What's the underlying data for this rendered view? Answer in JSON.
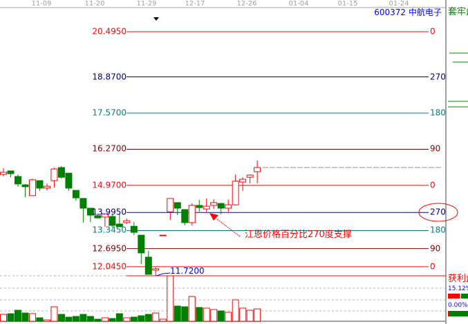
{
  "header": {
    "dates": [
      "11-09",
      "11-20",
      "11-29",
      "12-17",
      "12-26",
      "01-04",
      "01-15",
      "01-24"
    ],
    "stock_code": "600372",
    "stock_name": "中航电子",
    "side_title": "套牢盘"
  },
  "gann_levels": [
    {
      "price": "20.4950",
      "angle": "0",
      "color": "#ff0000"
    },
    {
      "price": "18.8700",
      "angle": "270",
      "color": "#000080"
    },
    {
      "price": "17.5700",
      "angle": "180",
      "color": "#008080"
    },
    {
      "price": "16.2700",
      "angle": "90",
      "color": "#800000"
    },
    {
      "price": "14.9700",
      "angle": "0",
      "color": "#ff0000"
    },
    {
      "price": "13.9950",
      "angle": "270",
      "color": "#000080"
    },
    {
      "price": "13.3450",
      "angle": "180",
      "color": "#008080"
    },
    {
      "price": "12.6950",
      "angle": "90",
      "color": "#800000"
    },
    {
      "price": "12.0450",
      "angle": "0",
      "color": "#ff0000"
    }
  ],
  "low_marker": "11.7200",
  "annotation": "江恩价格百分比270度支撑",
  "side_panel": {
    "profit_title": "获利盘",
    "profit_pct_1": "15.12%",
    "profit_pct_2": "0.00%",
    "profit_fraction_1": 0.1512,
    "profit_fraction_2": 0.0
  },
  "colors": {
    "up": "#ff0000",
    "down": "#008000",
    "grid": "#a0a0a0"
  },
  "chart_data": {
    "type": "candlestick",
    "price_range": [
      11.72,
      20.495
    ],
    "candles": [
      [
        15.36,
        15.59,
        15.29,
        15.44
      ],
      [
        15.49,
        15.49,
        15.26,
        15.39
      ],
      [
        15.29,
        15.36,
        14.92,
        15.02
      ],
      [
        14.99,
        15.02,
        14.55,
        14.92
      ],
      [
        14.6,
        15.21,
        14.6,
        15.17
      ],
      [
        15.14,
        15.14,
        14.77,
        14.87
      ],
      [
        14.87,
        15.04,
        14.79,
        14.94
      ],
      [
        15.14,
        15.61,
        14.89,
        15.56
      ],
      [
        15.61,
        15.66,
        15.21,
        15.26
      ],
      [
        15.41,
        15.41,
        14.77,
        14.87
      ],
      [
        14.79,
        14.79,
        14.42,
        14.52
      ],
      [
        14.5,
        14.5,
        13.63,
        14.15
      ],
      [
        14.15,
        14.15,
        13.65,
        13.9
      ],
      [
        13.88,
        13.95,
        13.78,
        13.8
      ],
      [
        13.83,
        13.95,
        13.48,
        13.95
      ],
      [
        13.85,
        13.95,
        13.45,
        13.53
      ],
      [
        13.58,
        13.95,
        13.48,
        13.48
      ],
      [
        13.63,
        13.78,
        13.58,
        13.7
      ],
      [
        13.5,
        13.65,
        13.18,
        13.28
      ],
      [
        13.18,
        13.18,
        12.14,
        12.54
      ],
      [
        12.39,
        12.61,
        11.77,
        11.77
      ],
      [
        11.92,
        12.02,
        11.72,
        11.97
      ],
      [
        13.18,
        13.18,
        13.18,
        13.18
      ],
      [
        14.02,
        14.5,
        13.73,
        14.5
      ],
      [
        14.35,
        14.35,
        13.9,
        14.15
      ],
      [
        14.1,
        14.1,
        13.53,
        13.63
      ],
      [
        13.63,
        14.32,
        13.53,
        14.25
      ],
      [
        14.25,
        14.45,
        14.02,
        14.17
      ],
      [
        14.12,
        14.5,
        14.02,
        14.22
      ],
      [
        14.25,
        14.47,
        14.12,
        14.35
      ],
      [
        14.32,
        14.32,
        13.93,
        14.15
      ],
      [
        14.15,
        14.45,
        14.02,
        14.27
      ],
      [
        14.27,
        15.36,
        14.25,
        15.12
      ],
      [
        15.09,
        15.26,
        14.77,
        15.19
      ],
      [
        15.26,
        15.36,
        15.04,
        15.34
      ],
      [
        15.46,
        15.86,
        15.04,
        15.61
      ]
    ],
    "volumes": [
      10,
      11,
      16,
      12,
      11,
      5,
      2,
      21,
      10,
      6,
      7,
      10,
      7,
      3,
      5,
      4,
      11,
      5,
      6,
      8,
      10,
      12,
      3,
      66,
      22,
      21,
      36,
      20,
      19,
      17,
      15,
      13,
      31,
      19,
      16,
      18
    ]
  }
}
